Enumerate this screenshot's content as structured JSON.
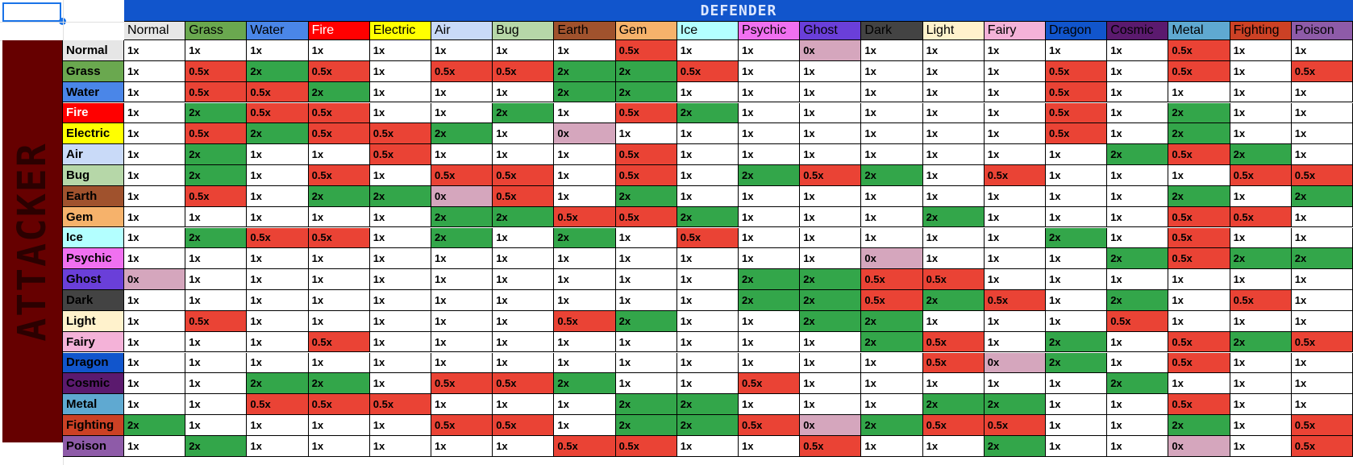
{
  "defender_label": "Defender",
  "attacker_label": "Attacker",
  "types": [
    {
      "name": "Normal",
      "color": "#e6e6e6",
      "text": "#000000"
    },
    {
      "name": "Grass",
      "color": "#6aa84f",
      "text": "#000000"
    },
    {
      "name": "Water",
      "color": "#4a86e8",
      "text": "#000000"
    },
    {
      "name": "Fire",
      "color": "#ff0000",
      "text": "#ffffff"
    },
    {
      "name": "Electric",
      "color": "#ffff00",
      "text": "#000000"
    },
    {
      "name": "Air",
      "color": "#c9daf8",
      "text": "#000000"
    },
    {
      "name": "Bug",
      "color": "#b6d7a8",
      "text": "#000000"
    },
    {
      "name": "Earth",
      "color": "#a0522d",
      "text": "#000000"
    },
    {
      "name": "Gem",
      "color": "#f6b26b",
      "text": "#000000"
    },
    {
      "name": "Ice",
      "color": "#b3ffff",
      "text": "#000000"
    },
    {
      "name": "Psychic",
      "color": "#f070f0",
      "text": "#000000"
    },
    {
      "name": "Ghost",
      "color": "#6a3fd9",
      "text": "#000000"
    },
    {
      "name": "Dark",
      "color": "#434343",
      "text": "#000000"
    },
    {
      "name": "Light",
      "color": "#fff2cc",
      "text": "#000000"
    },
    {
      "name": "Fairy",
      "color": "#f4b2d8",
      "text": "#000000"
    },
    {
      "name": "Dragon",
      "color": "#1155cc",
      "text": "#000000"
    },
    {
      "name": "Cosmic",
      "color": "#5b1a6e",
      "text": "#000000"
    },
    {
      "name": "Metal",
      "color": "#5fa9d1",
      "text": "#000000"
    },
    {
      "name": "Fighting",
      "color": "#cc4125",
      "text": "#000000"
    },
    {
      "name": "Poison",
      "color": "#8e5ba8",
      "text": "#000000"
    }
  ],
  "status_colors": {
    "2x": "#33a64a",
    "0.5x": "#ea4335",
    "0x": "#d5a6bd",
    "1x": "#ffffff"
  },
  "matrix": [
    [
      "1x",
      "1x",
      "1x",
      "1x",
      "1x",
      "1x",
      "1x",
      "1x",
      "0.5x",
      "1x",
      "1x",
      "0x",
      "1x",
      "1x",
      "1x",
      "1x",
      "1x",
      "0.5x",
      "1x",
      "1x"
    ],
    [
      "1x",
      "0.5x",
      "2x",
      "0.5x",
      "1x",
      "0.5x",
      "0.5x",
      "2x",
      "2x",
      "0.5x",
      "1x",
      "1x",
      "1x",
      "1x",
      "1x",
      "0.5x",
      "1x",
      "0.5x",
      "1x",
      "0.5x"
    ],
    [
      "1x",
      "0.5x",
      "0.5x",
      "2x",
      "1x",
      "1x",
      "1x",
      "2x",
      "2x",
      "1x",
      "1x",
      "1x",
      "1x",
      "1x",
      "1x",
      "0.5x",
      "1x",
      "1x",
      "1x",
      "1x"
    ],
    [
      "1x",
      "2x",
      "0.5x",
      "0.5x",
      "1x",
      "1x",
      "2x",
      "1x",
      "0.5x",
      "2x",
      "1x",
      "1x",
      "1x",
      "1x",
      "1x",
      "0.5x",
      "1x",
      "2x",
      "1x",
      "1x"
    ],
    [
      "1x",
      "0.5x",
      "2x",
      "0.5x",
      "0.5x",
      "2x",
      "1x",
      "0x",
      "1x",
      "1x",
      "1x",
      "1x",
      "1x",
      "1x",
      "1x",
      "0.5x",
      "1x",
      "2x",
      "1x",
      "1x"
    ],
    [
      "1x",
      "2x",
      "1x",
      "1x",
      "0.5x",
      "1x",
      "1x",
      "1x",
      "0.5x",
      "1x",
      "1x",
      "1x",
      "1x",
      "1x",
      "1x",
      "1x",
      "2x",
      "0.5x",
      "2x",
      "1x"
    ],
    [
      "1x",
      "2x",
      "1x",
      "0.5x",
      "1x",
      "0.5x",
      "0.5x",
      "1x",
      "0.5x",
      "1x",
      "2x",
      "0.5x",
      "2x",
      "1x",
      "0.5x",
      "1x",
      "1x",
      "1x",
      "0.5x",
      "0.5x"
    ],
    [
      "1x",
      "0.5x",
      "1x",
      "2x",
      "2x",
      "0x",
      "0.5x",
      "1x",
      "2x",
      "1x",
      "1x",
      "1x",
      "1x",
      "1x",
      "1x",
      "1x",
      "1x",
      "2x",
      "1x",
      "2x"
    ],
    [
      "1x",
      "1x",
      "1x",
      "1x",
      "1x",
      "2x",
      "2x",
      "0.5x",
      "0.5x",
      "2x",
      "1x",
      "1x",
      "1x",
      "2x",
      "1x",
      "1x",
      "1x",
      "0.5x",
      "0.5x",
      "1x"
    ],
    [
      "1x",
      "2x",
      "0.5x",
      "0.5x",
      "1x",
      "2x",
      "1x",
      "2x",
      "1x",
      "0.5x",
      "1x",
      "1x",
      "1x",
      "1x",
      "1x",
      "2x",
      "1x",
      "0.5x",
      "1x",
      "1x"
    ],
    [
      "1x",
      "1x",
      "1x",
      "1x",
      "1x",
      "1x",
      "1x",
      "1x",
      "1x",
      "1x",
      "1x",
      "1x",
      "0x",
      "1x",
      "1x",
      "1x",
      "2x",
      "0.5x",
      "2x",
      "2x"
    ],
    [
      "0x",
      "1x",
      "1x",
      "1x",
      "1x",
      "1x",
      "1x",
      "1x",
      "1x",
      "1x",
      "2x",
      "2x",
      "0.5x",
      "0.5x",
      "1x",
      "1x",
      "1x",
      "1x",
      "1x",
      "1x"
    ],
    [
      "1x",
      "1x",
      "1x",
      "1x",
      "1x",
      "1x",
      "1x",
      "1x",
      "1x",
      "1x",
      "2x",
      "2x",
      "0.5x",
      "2x",
      "0.5x",
      "1x",
      "2x",
      "1x",
      "0.5x",
      "1x"
    ],
    [
      "1x",
      "0.5x",
      "1x",
      "1x",
      "1x",
      "1x",
      "1x",
      "0.5x",
      "2x",
      "1x",
      "1x",
      "2x",
      "2x",
      "1x",
      "1x",
      "1x",
      "0.5x",
      "1x",
      "1x",
      "1x"
    ],
    [
      "1x",
      "1x",
      "1x",
      "0.5x",
      "1x",
      "1x",
      "1x",
      "1x",
      "1x",
      "1x",
      "1x",
      "1x",
      "2x",
      "0.5x",
      "1x",
      "2x",
      "1x",
      "0.5x",
      "2x",
      "0.5x"
    ],
    [
      "1x",
      "1x",
      "1x",
      "1x",
      "1x",
      "1x",
      "1x",
      "1x",
      "1x",
      "1x",
      "1x",
      "1x",
      "1x",
      "0.5x",
      "0x",
      "2x",
      "1x",
      "0.5x",
      "1x",
      "1x"
    ],
    [
      "1x",
      "1x",
      "2x",
      "2x",
      "1x",
      "0.5x",
      "0.5x",
      "2x",
      "1x",
      "1x",
      "0.5x",
      "1x",
      "1x",
      "1x",
      "1x",
      "1x",
      "2x",
      "1x",
      "1x",
      "1x"
    ],
    [
      "1x",
      "1x",
      "0.5x",
      "0.5x",
      "0.5x",
      "1x",
      "1x",
      "1x",
      "2x",
      "2x",
      "1x",
      "1x",
      "1x",
      "2x",
      "2x",
      "1x",
      "1x",
      "0.5x",
      "1x",
      "1x"
    ],
    [
      "2x",
      "1x",
      "1x",
      "1x",
      "1x",
      "0.5x",
      "0.5x",
      "1x",
      "2x",
      "2x",
      "0.5x",
      "0x",
      "2x",
      "0.5x",
      "0.5x",
      "1x",
      "1x",
      "2x",
      "1x",
      "0.5x"
    ],
    [
      "1x",
      "2x",
      "1x",
      "1x",
      "1x",
      "1x",
      "1x",
      "0.5x",
      "0.5x",
      "1x",
      "1x",
      "0.5x",
      "1x",
      "1x",
      "2x",
      "1x",
      "1x",
      "0x",
      "1x",
      "0.5x"
    ]
  ]
}
